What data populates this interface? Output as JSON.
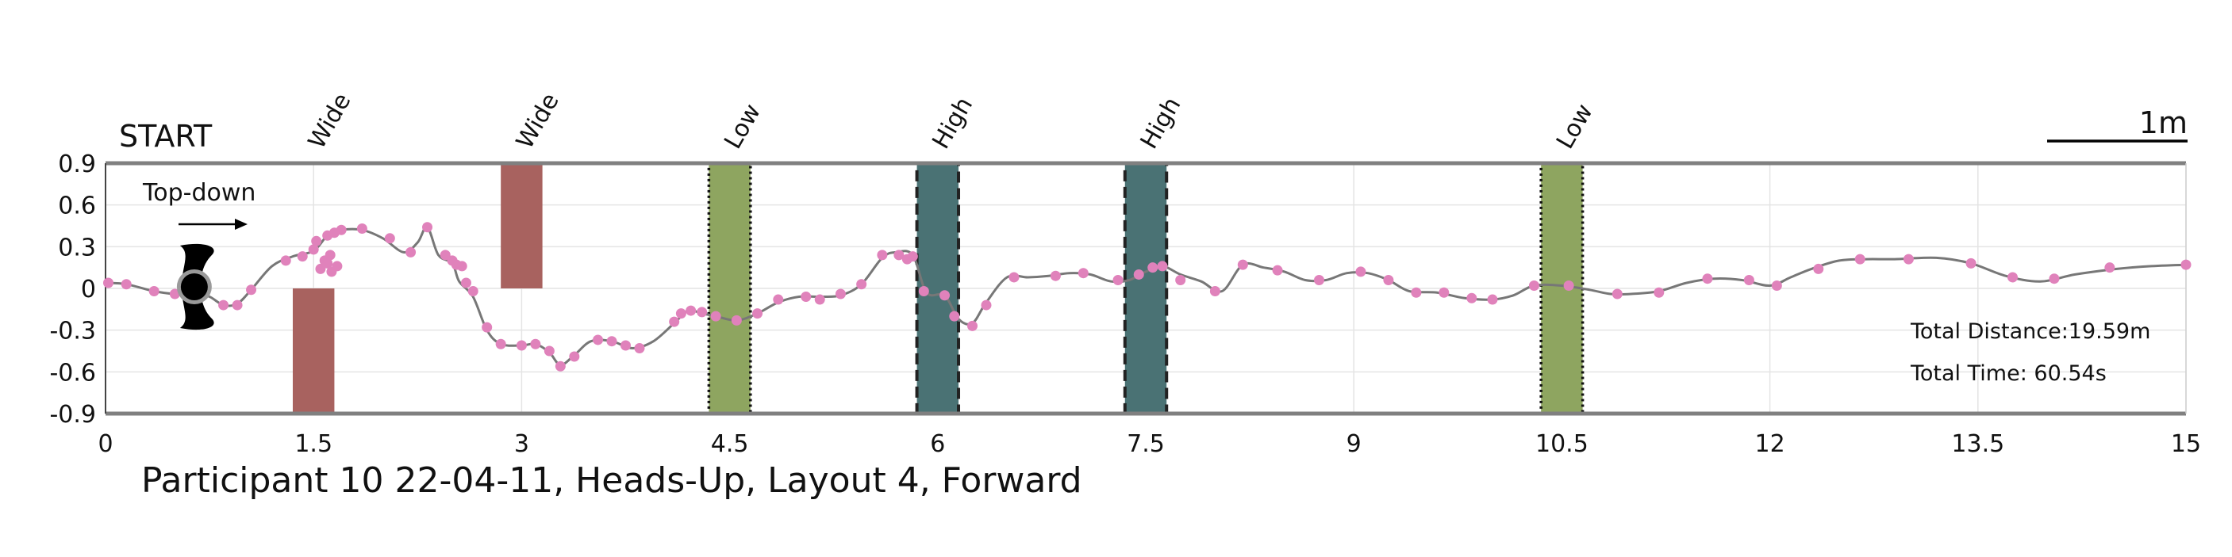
{
  "chart_data": {
    "type": "line",
    "title": "Participant 10 22-04-11, Heads-Up, Layout 4, Forward",
    "xlabel": "",
    "ylabel": "",
    "xlim": [
      0,
      15
    ],
    "ylim": [
      -0.9,
      0.9
    ],
    "x_ticks": [
      "0",
      "1.5",
      "3",
      "4.5",
      "6",
      "7.5",
      "9",
      "10.5",
      "12",
      "13.5",
      "15"
    ],
    "y_ticks": [
      "0.9",
      "0.6",
      "0.3",
      "0",
      "-0.3",
      "-0.6",
      "-0.9"
    ],
    "grid": true,
    "start_label": "START",
    "direction_label": "Top-down",
    "scale_bar_label": "1m",
    "stats": {
      "distance": "Total Distance:19.59m",
      "time": "Total Time: 60.54s"
    },
    "colors": {
      "path": "#777777",
      "points": "#e082bb",
      "wide": "#a8625f",
      "low": "#8ea560",
      "high": "#4a7274",
      "border": "#808080"
    },
    "obstacles": [
      {
        "label": "Wide",
        "kind": "wide",
        "x": [
          1.35,
          1.65
        ],
        "y": [
          -0.9,
          0.0
        ]
      },
      {
        "label": "Wide",
        "kind": "wide",
        "x": [
          2.85,
          3.15
        ],
        "y": [
          0.0,
          0.9
        ]
      },
      {
        "label": "Low",
        "kind": "low",
        "x": [
          4.35,
          4.65
        ],
        "y": [
          -0.9,
          0.9
        ]
      },
      {
        "label": "High",
        "kind": "high",
        "x": [
          5.85,
          6.15
        ],
        "y": [
          -0.9,
          0.9
        ]
      },
      {
        "label": "High",
        "kind": "high",
        "x": [
          7.35,
          7.65
        ],
        "y": [
          -0.9,
          0.9
        ]
      },
      {
        "label": "Low",
        "kind": "low",
        "x": [
          10.35,
          10.65
        ],
        "y": [
          -0.9,
          0.9
        ]
      }
    ],
    "path": [
      [
        0.0,
        0.04
      ],
      [
        0.15,
        0.03
      ],
      [
        0.35,
        -0.02
      ],
      [
        0.5,
        -0.04
      ],
      [
        0.65,
        -0.04
      ],
      [
        0.75,
        -0.06
      ],
      [
        0.85,
        -0.12
      ],
      [
        0.95,
        -0.11
      ],
      [
        1.05,
        -0.01
      ],
      [
        1.2,
        0.16
      ],
      [
        1.35,
        0.23
      ],
      [
        1.5,
        0.27
      ],
      [
        1.6,
        0.38
      ],
      [
        1.7,
        0.42
      ],
      [
        1.85,
        0.42
      ],
      [
        2.0,
        0.36
      ],
      [
        2.15,
        0.26
      ],
      [
        2.25,
        0.33
      ],
      [
        2.32,
        0.44
      ],
      [
        2.4,
        0.24
      ],
      [
        2.5,
        0.18
      ],
      [
        2.55,
        0.05
      ],
      [
        2.65,
        -0.06
      ],
      [
        2.75,
        -0.3
      ],
      [
        2.85,
        -0.4
      ],
      [
        3.0,
        -0.41
      ],
      [
        3.1,
        -0.4
      ],
      [
        3.2,
        -0.46
      ],
      [
        3.28,
        -0.55
      ],
      [
        3.38,
        -0.48
      ],
      [
        3.5,
        -0.38
      ],
      [
        3.65,
        -0.38
      ],
      [
        3.8,
        -0.43
      ],
      [
        3.95,
        -0.38
      ],
      [
        4.1,
        -0.25
      ],
      [
        4.2,
        -0.16
      ],
      [
        4.3,
        -0.18
      ],
      [
        4.4,
        -0.2
      ],
      [
        4.55,
        -0.23
      ],
      [
        4.7,
        -0.18
      ],
      [
        4.85,
        -0.1
      ],
      [
        5.0,
        -0.06
      ],
      [
        5.15,
        -0.06
      ],
      [
        5.3,
        -0.05
      ],
      [
        5.45,
        0.03
      ],
      [
        5.6,
        0.22
      ],
      [
        5.7,
        0.26
      ],
      [
        5.82,
        0.24
      ],
      [
        5.92,
        -0.03
      ],
      [
        6.05,
        -0.05
      ],
      [
        6.15,
        -0.22
      ],
      [
        6.25,
        -0.25
      ],
      [
        6.35,
        -0.1
      ],
      [
        6.5,
        0.08
      ],
      [
        6.65,
        0.08
      ],
      [
        6.8,
        0.09
      ],
      [
        6.95,
        0.11
      ],
      [
        7.1,
        0.1
      ],
      [
        7.25,
        0.05
      ],
      [
        7.38,
        0.06
      ],
      [
        7.5,
        0.12
      ],
      [
        7.62,
        0.16
      ],
      [
        7.75,
        0.1
      ],
      [
        7.9,
        0.05
      ],
      [
        8.05,
        -0.02
      ],
      [
        8.2,
        0.17
      ],
      [
        8.35,
        0.15
      ],
      [
        8.5,
        0.12
      ],
      [
        8.65,
        0.06
      ],
      [
        8.8,
        0.06
      ],
      [
        8.95,
        0.11
      ],
      [
        9.1,
        0.11
      ],
      [
        9.25,
        0.06
      ],
      [
        9.4,
        -0.02
      ],
      [
        9.6,
        -0.03
      ],
      [
        9.8,
        -0.07
      ],
      [
        10.0,
        -0.08
      ],
      [
        10.15,
        -0.05
      ],
      [
        10.3,
        0.02
      ],
      [
        10.5,
        0.02
      ],
      [
        10.7,
        -0.01
      ],
      [
        10.85,
        -0.04
      ],
      [
        11.0,
        -0.04
      ],
      [
        11.2,
        -0.02
      ],
      [
        11.4,
        0.04
      ],
      [
        11.6,
        0.07
      ],
      [
        11.8,
        0.06
      ],
      [
        12.0,
        0.02
      ],
      [
        12.15,
        0.08
      ],
      [
        12.3,
        0.14
      ],
      [
        12.5,
        0.2
      ],
      [
        12.7,
        0.21
      ],
      [
        12.9,
        0.21
      ],
      [
        13.2,
        0.22
      ],
      [
        13.45,
        0.18
      ],
      [
        13.7,
        0.09
      ],
      [
        13.95,
        0.05
      ],
      [
        14.2,
        0.1
      ],
      [
        14.5,
        0.14
      ],
      [
        14.75,
        0.16
      ],
      [
        15.0,
        0.17
      ]
    ],
    "points": [
      [
        0.02,
        0.04
      ],
      [
        0.15,
        0.03
      ],
      [
        0.35,
        -0.02
      ],
      [
        0.5,
        -0.04
      ],
      [
        0.85,
        -0.12
      ],
      [
        0.95,
        -0.12
      ],
      [
        1.05,
        -0.01
      ],
      [
        1.3,
        0.2
      ],
      [
        1.42,
        0.23
      ],
      [
        1.5,
        0.28
      ],
      [
        1.52,
        0.34
      ],
      [
        1.55,
        0.14
      ],
      [
        1.58,
        0.2
      ],
      [
        1.6,
        0.18
      ],
      [
        1.6,
        0.38
      ],
      [
        1.62,
        0.24
      ],
      [
        1.63,
        0.12
      ],
      [
        1.65,
        0.4
      ],
      [
        1.67,
        0.16
      ],
      [
        1.7,
        0.42
      ],
      [
        1.85,
        0.43
      ],
      [
        2.05,
        0.36
      ],
      [
        2.2,
        0.26
      ],
      [
        2.32,
        0.44
      ],
      [
        2.45,
        0.24
      ],
      [
        2.5,
        0.2
      ],
      [
        2.53,
        0.17
      ],
      [
        2.57,
        0.16
      ],
      [
        2.6,
        0.04
      ],
      [
        2.65,
        -0.02
      ],
      [
        2.75,
        -0.28
      ],
      [
        2.85,
        -0.4
      ],
      [
        3.0,
        -0.41
      ],
      [
        3.1,
        -0.4
      ],
      [
        3.2,
        -0.45
      ],
      [
        3.28,
        -0.56
      ],
      [
        3.38,
        -0.49
      ],
      [
        3.55,
        -0.37
      ],
      [
        3.65,
        -0.38
      ],
      [
        3.75,
        -0.41
      ],
      [
        3.85,
        -0.43
      ],
      [
        4.1,
        -0.24
      ],
      [
        4.15,
        -0.18
      ],
      [
        4.22,
        -0.16
      ],
      [
        4.3,
        -0.17
      ],
      [
        4.4,
        -0.2
      ],
      [
        4.55,
        -0.23
      ],
      [
        4.7,
        -0.18
      ],
      [
        4.85,
        -0.08
      ],
      [
        5.05,
        -0.06
      ],
      [
        5.15,
        -0.08
      ],
      [
        5.3,
        -0.04
      ],
      [
        5.45,
        0.03
      ],
      [
        5.6,
        0.24
      ],
      [
        5.72,
        0.24
      ],
      [
        5.78,
        0.21
      ],
      [
        5.82,
        0.23
      ],
      [
        5.9,
        -0.02
      ],
      [
        6.05,
        -0.05
      ],
      [
        6.12,
        -0.2
      ],
      [
        6.25,
        -0.27
      ],
      [
        6.35,
        -0.12
      ],
      [
        6.55,
        0.08
      ],
      [
        6.85,
        0.09
      ],
      [
        7.05,
        0.11
      ],
      [
        7.3,
        0.06
      ],
      [
        7.45,
        0.1
      ],
      [
        7.55,
        0.15
      ],
      [
        7.62,
        0.16
      ],
      [
        7.75,
        0.06
      ],
      [
        8.0,
        -0.02
      ],
      [
        8.2,
        0.17
      ],
      [
        8.45,
        0.13
      ],
      [
        8.75,
        0.06
      ],
      [
        9.05,
        0.12
      ],
      [
        9.25,
        0.06
      ],
      [
        9.45,
        -0.03
      ],
      [
        9.65,
        -0.03
      ],
      [
        9.85,
        -0.07
      ],
      [
        10.0,
        -0.08
      ],
      [
        10.3,
        0.02
      ],
      [
        10.55,
        0.02
      ],
      [
        10.9,
        -0.04
      ],
      [
        11.2,
        -0.03
      ],
      [
        11.55,
        0.07
      ],
      [
        11.85,
        0.06
      ],
      [
        12.05,
        0.02
      ],
      [
        12.35,
        0.14
      ],
      [
        12.65,
        0.21
      ],
      [
        13.0,
        0.21
      ],
      [
        13.45,
        0.18
      ],
      [
        13.75,
        0.08
      ],
      [
        14.05,
        0.07
      ],
      [
        14.45,
        0.15
      ],
      [
        15.0,
        0.17
      ]
    ]
  }
}
